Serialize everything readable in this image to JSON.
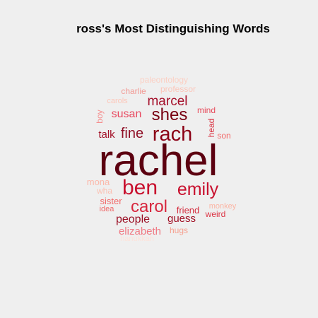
{
  "chart_data": {
    "type": "wordcloud",
    "title": "ross's Most Distinguishing Words",
    "words": [
      {
        "text": "rachel",
        "weight": 100,
        "color": "#5c0010"
      },
      {
        "text": "rach",
        "weight": 52,
        "color": "#8b0015"
      },
      {
        "text": "shes",
        "weight": 44,
        "color": "#780011"
      },
      {
        "text": "ben",
        "weight": 56,
        "color": "#c8102e"
      },
      {
        "text": "emily",
        "weight": 46,
        "color": "#c8102e"
      },
      {
        "text": "carol",
        "weight": 42,
        "color": "#d7263d"
      },
      {
        "text": "marcel",
        "weight": 33,
        "color": "#a50f2a"
      },
      {
        "text": "fine",
        "weight": 33,
        "color": "#8f0f26"
      },
      {
        "text": "susan",
        "weight": 28,
        "color": "#e8485f"
      },
      {
        "text": "talk",
        "weight": 25,
        "color": "#a31228"
      },
      {
        "text": "people",
        "weight": 24,
        "color": "#9a0f24"
      },
      {
        "text": "guess",
        "weight": 22,
        "color": "#a00f24"
      },
      {
        "text": "elizabeth",
        "weight": 22,
        "color": "#f07b85"
      },
      {
        "text": "friend",
        "weight": 19,
        "color": "#d42e3f"
      },
      {
        "text": "weird",
        "weight": 18,
        "color": "#dc3545"
      },
      {
        "text": "mind",
        "weight": 18,
        "color": "#e74c5c"
      },
      {
        "text": "head",
        "weight": 18,
        "color": "#d9303f"
      },
      {
        "text": "son",
        "weight": 18,
        "color": "#f26a6a"
      },
      {
        "text": "mona",
        "weight": 18,
        "color": "#fbb8aa"
      },
      {
        "text": "boy",
        "weight": 17,
        "color": "#f58f8f"
      },
      {
        "text": "charlie",
        "weight": 17,
        "color": "#f29a94"
      },
      {
        "text": "professor",
        "weight": 17,
        "color": "#fbc6ba"
      },
      {
        "text": "sister",
        "weight": 17,
        "color": "#f06a6a"
      },
      {
        "text": "wha",
        "weight": 16,
        "color": "#fbc0b2"
      },
      {
        "text": "hugs",
        "weight": 16,
        "color": "#f6a08f"
      },
      {
        "text": "monkey",
        "weight": 16,
        "color": "#fbb5a4"
      },
      {
        "text": "paleontology",
        "weight": 15,
        "color": "#fbd0c4"
      },
      {
        "text": "carols",
        "weight": 15,
        "color": "#fcc7ba"
      },
      {
        "text": "idea",
        "weight": 15,
        "color": "#ef6a6a"
      },
      {
        "text": "hanukkah",
        "weight": 14,
        "color": "#fde2da"
      }
    ]
  }
}
